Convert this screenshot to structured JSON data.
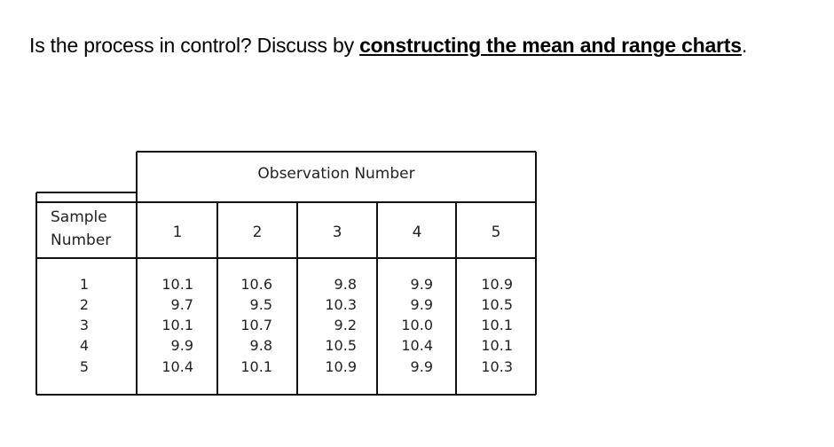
{
  "question": {
    "prefix": "Is the process in control? Discuss by ",
    "emphasis": "constructing the mean and range charts",
    "suffix": "."
  },
  "table": {
    "group_header": "Observation Number",
    "row_header_line1": "Sample",
    "row_header_line2": "Number",
    "columns": [
      "1",
      "2",
      "3",
      "4",
      "5"
    ],
    "sample_numbers": [
      "1",
      "2",
      "3",
      "4",
      "5"
    ],
    "rows": [
      [
        "10.1",
        "10.6",
        "9.8",
        "9.9",
        "10.9"
      ],
      [
        "9.7",
        "9.5",
        "10.3",
        "9.9",
        "10.5"
      ],
      [
        "10.1",
        "10.7",
        "9.2",
        "10.0",
        "10.1"
      ],
      [
        "9.9",
        "9.8",
        "10.5",
        "10.4",
        "10.1"
      ],
      [
        "10.4",
        "10.1",
        "10.9",
        "9.9",
        "10.3"
      ]
    ]
  }
}
